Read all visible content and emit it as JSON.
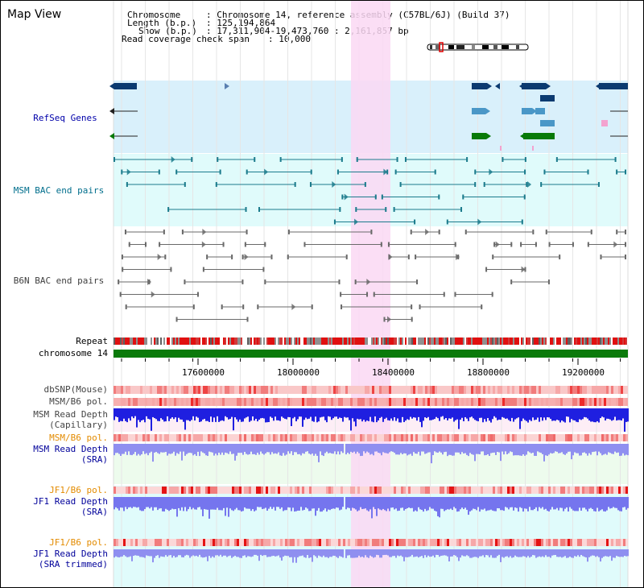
{
  "header": {
    "title": "Map View",
    "chromosome_label": "Chromosome",
    "chromosome_value": ": Chromosome 14, reference assembly (C57BL/6J) (Build 37)",
    "length_label": "Length (b.p.)",
    "length_value": ": 125,194,864",
    "show_label": "Show (b.p.)",
    "show_value": ": 17,311,904-19,473,760 : 2,161,857 bp",
    "coverage_label": "Read coverage check span",
    "coverage_value": ": 10,000"
  },
  "tracks": {
    "refseq": "RefSeq Genes",
    "msm_bac": "MSM BAC end pairs",
    "b6n_bac": "B6N BAC end pairs",
    "repeat": "Repeat",
    "chromosome": "chromosome 14",
    "dbsnp": "dbSNP(Mouse)",
    "msm_b6_pol_1": "MSM/B6 pol.",
    "msm_read_depth_cap_1": "MSM Read Depth",
    "msm_read_depth_cap_2": "(Capillary)",
    "msm_b6_pol_2": "MSM/B6 pol.",
    "msm_read_depth_sra_1": "MSM Read Depth",
    "msm_read_depth_sra_2": "(SRA)",
    "jf1_b6_pol_1": "JF1/B6 pol.",
    "jf1_read_depth_sra_1": "JF1 Read Depth",
    "jf1_read_depth_sra_2": "(SRA)",
    "jf1_b6_pol_2": "JF1/B6 pol.",
    "jf1_read_depth_trim_1": "JF1 Read Depth",
    "jf1_read_depth_trim_2": "(SRA trimmed)"
  },
  "axis": {
    "ticks": [
      "17600000",
      "18000000",
      "18400000",
      "18800000",
      "19200000"
    ]
  },
  "colors": {
    "refseq_bg": "#d9f0fb",
    "msm_bg": "#e0fbfb",
    "highlight": "#fad8f3",
    "chromosome_bar": "#0a7a0a",
    "msm_label": "#006e8c",
    "b6n_label": "#404040",
    "refseq_label": "#0000aa",
    "depth_label": "#00009a",
    "pol_label": "#e38b00"
  }
}
